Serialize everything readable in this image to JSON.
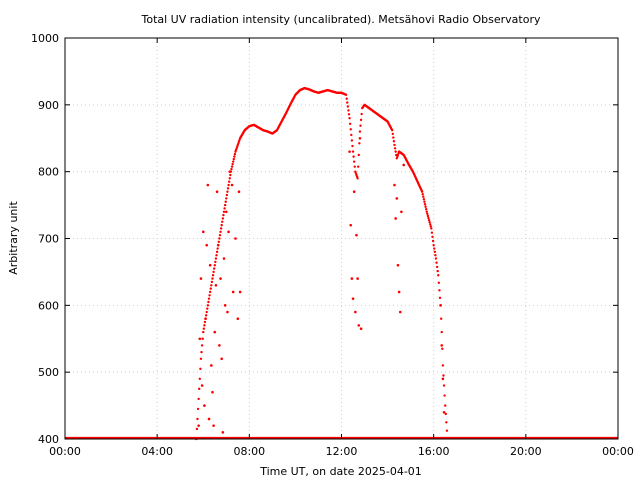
{
  "chart_data": {
    "type": "scatter",
    "title": "Total UV radiation intensity (uncalibrated). Metsähovi Radio Observatory",
    "xlabel": "Time UT, on date 2025-04-01",
    "ylabel": "Arbitrary unit",
    "x_unit": "hours UT",
    "xlim": [
      0,
      24
    ],
    "ylim": [
      400,
      1000
    ],
    "x_ticks": [
      0,
      4,
      8,
      12,
      16,
      20,
      24
    ],
    "x_tick_labels": [
      "00:00",
      "04:00",
      "08:00",
      "12:00",
      "16:00",
      "20:00",
      "00:00"
    ],
    "y_ticks": [
      400,
      500,
      600,
      700,
      800,
      900,
      1000
    ],
    "y_tick_labels": [
      "400",
      "500",
      "600",
      "700",
      "800",
      "900",
      "1000"
    ],
    "grid": true,
    "marker_color": "#ff0000",
    "series": [
      {
        "baseline": {
          "x_start": 0.0,
          "x_end": 24.0,
          "y": 400
        },
        "curve": [
          [
            5.7,
            400
          ],
          [
            5.8,
            460
          ],
          [
            5.9,
            520
          ],
          [
            6.0,
            560
          ],
          [
            6.2,
            600
          ],
          [
            6.4,
            640
          ],
          [
            6.6,
            680
          ],
          [
            6.8,
            720
          ],
          [
            7.0,
            760
          ],
          [
            7.2,
            800
          ],
          [
            7.4,
            830
          ],
          [
            7.6,
            850
          ],
          [
            7.8,
            862
          ],
          [
            8.0,
            868
          ],
          [
            8.2,
            870
          ],
          [
            8.4,
            866
          ],
          [
            8.6,
            862
          ],
          [
            8.8,
            860
          ],
          [
            9.0,
            857
          ],
          [
            9.2,
            862
          ],
          [
            9.4,
            875
          ],
          [
            9.6,
            888
          ],
          [
            9.8,
            902
          ],
          [
            10.0,
            915
          ],
          [
            10.2,
            922
          ],
          [
            10.4,
            925
          ],
          [
            10.6,
            923
          ],
          [
            10.8,
            920
          ],
          [
            11.0,
            918
          ],
          [
            11.2,
            920
          ],
          [
            11.4,
            922
          ],
          [
            11.6,
            920
          ],
          [
            11.8,
            918
          ],
          [
            12.0,
            918
          ],
          [
            12.2,
            915
          ],
          [
            12.35,
            880
          ],
          [
            12.5,
            830
          ],
          [
            12.6,
            800
          ],
          [
            12.7,
            790
          ],
          [
            12.8,
            860
          ],
          [
            12.9,
            895
          ],
          [
            13.0,
            900
          ],
          [
            13.2,
            895
          ],
          [
            13.4,
            890
          ],
          [
            13.6,
            885
          ],
          [
            13.8,
            880
          ],
          [
            14.0,
            875
          ],
          [
            14.2,
            862
          ],
          [
            14.3,
            840
          ],
          [
            14.4,
            820
          ],
          [
            14.5,
            830
          ],
          [
            14.7,
            825
          ],
          [
            14.9,
            812
          ],
          [
            15.1,
            800
          ],
          [
            15.3,
            785
          ],
          [
            15.5,
            770
          ],
          [
            15.7,
            740
          ],
          [
            15.9,
            715
          ],
          [
            16.0,
            690
          ],
          [
            16.1,
            670
          ],
          [
            16.2,
            645
          ],
          [
            16.3,
            600
          ],
          [
            16.35,
            560
          ],
          [
            16.4,
            510
          ],
          [
            16.5,
            450
          ],
          [
            16.6,
            400
          ]
        ],
        "scatter": [
          [
            5.8,
            420
          ],
          [
            5.85,
            550
          ],
          [
            5.9,
            640
          ],
          [
            5.95,
            480
          ],
          [
            6.0,
            710
          ],
          [
            6.05,
            450
          ],
          [
            6.1,
            580
          ],
          [
            6.15,
            690
          ],
          [
            6.2,
            780
          ],
          [
            6.25,
            430
          ],
          [
            6.3,
            660
          ],
          [
            6.35,
            510
          ],
          [
            6.4,
            470
          ],
          [
            6.45,
            420
          ],
          [
            6.5,
            560
          ],
          [
            6.55,
            630
          ],
          [
            6.6,
            770
          ],
          [
            6.65,
            690
          ],
          [
            6.7,
            540
          ],
          [
            6.75,
            640
          ],
          [
            6.8,
            520
          ],
          [
            6.85,
            410
          ],
          [
            6.9,
            670
          ],
          [
            6.95,
            600
          ],
          [
            7.0,
            740
          ],
          [
            7.05,
            590
          ],
          [
            7.1,
            710
          ],
          [
            7.15,
            800
          ],
          [
            7.25,
            780
          ],
          [
            7.3,
            620
          ],
          [
            7.4,
            700
          ],
          [
            7.5,
            580
          ],
          [
            7.55,
            770
          ],
          [
            7.6,
            620
          ],
          [
            12.35,
            830
          ],
          [
            12.4,
            720
          ],
          [
            12.45,
            640
          ],
          [
            12.5,
            610
          ],
          [
            12.55,
            770
          ],
          [
            12.6,
            590
          ],
          [
            12.65,
            705
          ],
          [
            12.7,
            640
          ],
          [
            12.75,
            570
          ],
          [
            12.8,
            850
          ],
          [
            12.85,
            565
          ],
          [
            14.3,
            780
          ],
          [
            14.35,
            730
          ],
          [
            14.4,
            760
          ],
          [
            14.45,
            660
          ],
          [
            14.5,
            620
          ],
          [
            14.55,
            590
          ],
          [
            14.6,
            740
          ],
          [
            14.7,
            810
          ],
          [
            16.3,
            600
          ],
          [
            16.35,
            540
          ],
          [
            16.4,
            490
          ],
          [
            16.45,
            440
          ]
        ]
      }
    ]
  }
}
